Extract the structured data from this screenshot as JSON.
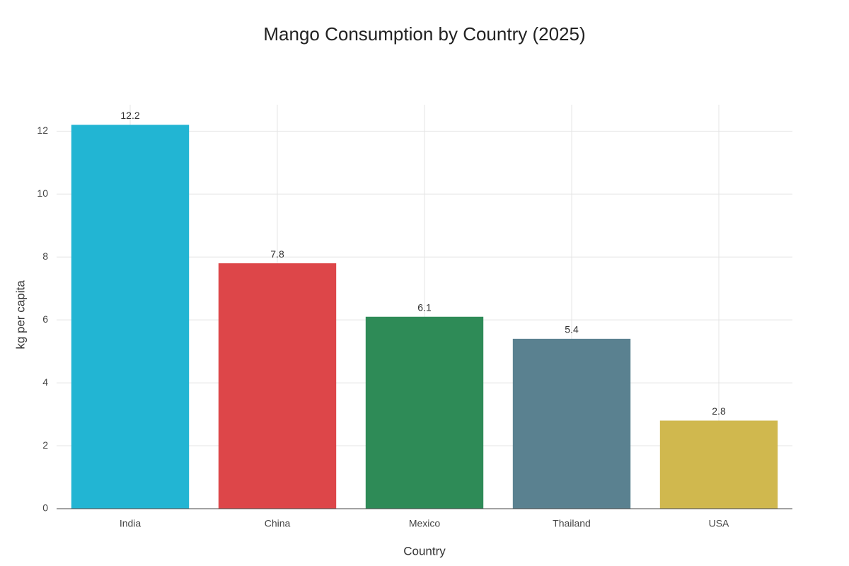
{
  "chart_data": {
    "type": "bar",
    "title": "Mango Consumption by Country (2025)",
    "x_label": "Country",
    "y_label": "kg per capita",
    "categories": [
      "India",
      "China",
      "Mexico",
      "Thailand",
      "USA"
    ],
    "values": [
      12.2,
      7.8,
      6.1,
      5.4,
      2.8
    ],
    "colors": [
      "#22b5d3",
      "#dd4649",
      "#2e8b57",
      "#5a8190",
      "#d0b84e"
    ],
    "ylim": [
      0,
      12.84
    ],
    "yticks": [
      0,
      2,
      4,
      6,
      8,
      10,
      12
    ],
    "grid": true
  }
}
